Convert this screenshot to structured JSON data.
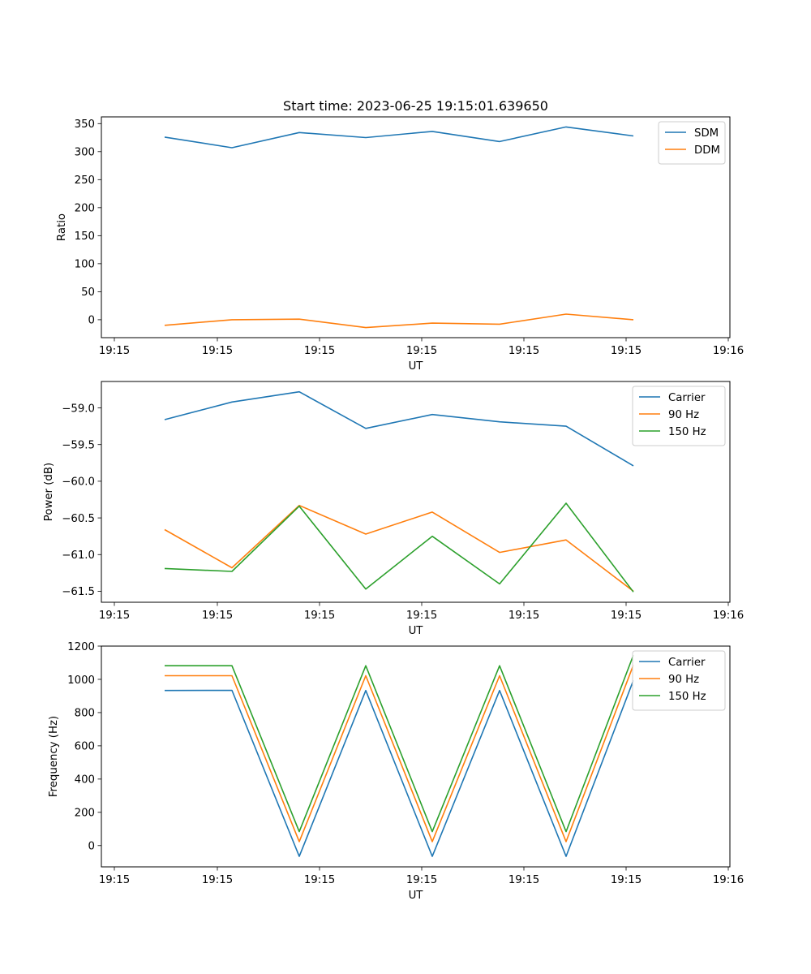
{
  "figure_title": "Start time: 2023-06-25 19:15:01.639650",
  "colors": {
    "blue": "#1f77b4",
    "orange": "#ff7f0e",
    "green": "#2ca02c"
  },
  "chart_data": [
    {
      "type": "line",
      "ylabel": "Ratio",
      "xlabel": "UT",
      "x_tick_labels": [
        "19:15",
        "19:15",
        "19:15",
        "19:15",
        "19:15",
        "19:15",
        "19:16"
      ],
      "y_ticks": [
        0,
        50,
        100,
        150,
        200,
        250,
        300,
        350
      ],
      "y_tick_labels": [
        "0",
        "50",
        "100",
        "150",
        "200",
        "250",
        "300",
        "350"
      ],
      "ylim": [
        -32,
        362
      ],
      "legend_position": "upper right",
      "series": [
        {
          "name": "SDM",
          "color": "#1f77b4",
          "values": [
            326,
            307,
            334,
            325,
            336,
            318,
            344,
            328
          ]
        },
        {
          "name": "DDM",
          "color": "#ff7f0e",
          "values": [
            -10,
            0,
            1,
            -14,
            -6,
            -8,
            10,
            0
          ]
        }
      ]
    },
    {
      "type": "line",
      "ylabel": "Power (dB)",
      "xlabel": "UT",
      "x_tick_labels": [
        "19:15",
        "19:15",
        "19:15",
        "19:15",
        "19:15",
        "19:15",
        "19:16"
      ],
      "y_ticks": [
        -61.5,
        -61.0,
        -60.5,
        -60.0,
        -59.5,
        -59.0
      ],
      "y_tick_labels": [
        "−61.5",
        "−61.0",
        "−60.5",
        "−60.0",
        "−59.5",
        "−59.0"
      ],
      "ylim": [
        -61.65,
        -58.64
      ],
      "legend_position": "upper right",
      "series": [
        {
          "name": "Carrier",
          "color": "#1f77b4",
          "values": [
            -59.16,
            -58.92,
            -58.78,
            -59.28,
            -59.09,
            -59.19,
            -59.25,
            -59.79
          ]
        },
        {
          "name": "90 Hz",
          "color": "#ff7f0e",
          "values": [
            -60.66,
            -61.18,
            -60.33,
            -60.72,
            -60.42,
            -60.97,
            -60.8,
            -61.5
          ]
        },
        {
          "name": "150 Hz",
          "color": "#2ca02c",
          "values": [
            -61.19,
            -61.23,
            -60.34,
            -61.47,
            -60.75,
            -61.4,
            -60.3,
            -61.51
          ]
        }
      ]
    },
    {
      "type": "line",
      "ylabel": "Frequency (Hz)",
      "xlabel": "UT",
      "x_tick_labels": [
        "19:15",
        "19:15",
        "19:15",
        "19:15",
        "19:15",
        "19:15",
        "19:16"
      ],
      "y_ticks": [
        0,
        200,
        400,
        600,
        800,
        1000,
        1200
      ],
      "y_tick_labels": [
        "0",
        "200",
        "400",
        "600",
        "800",
        "1000",
        "1200"
      ],
      "ylim": [
        -128,
        1200
      ],
      "legend_position": "upper right",
      "series": [
        {
          "name": "Carrier",
          "color": "#1f77b4",
          "values": [
            933,
            934,
            -65,
            933,
            -65,
            933,
            -65,
            994
          ]
        },
        {
          "name": "90 Hz",
          "color": "#ff7f0e",
          "values": [
            1022,
            1022,
            24,
            1022,
            24,
            1022,
            24,
            1086
          ]
        },
        {
          "name": "150 Hz",
          "color": "#2ca02c",
          "values": [
            1082,
            1082,
            84,
            1082,
            84,
            1082,
            84,
            1146
          ]
        }
      ]
    }
  ]
}
